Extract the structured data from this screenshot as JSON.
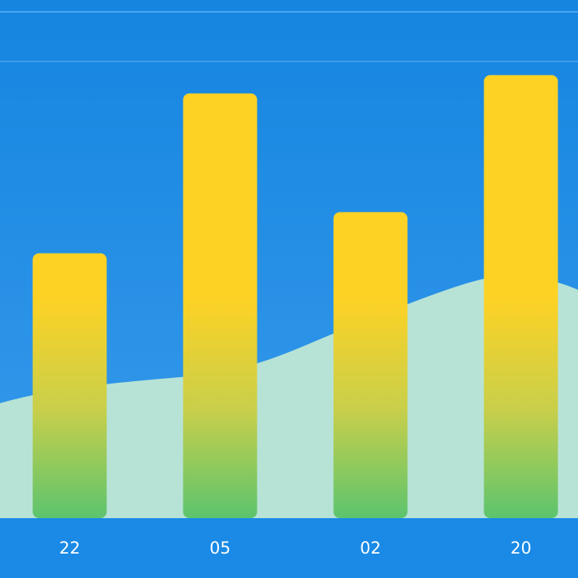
{
  "chart_data": {
    "type": "bar",
    "categories": [
      "22",
      "05",
      "02",
      "20"
    ],
    "values": [
      58,
      93,
      67,
      97
    ],
    "color": "#fdd225",
    "ylim": [
      0,
      100
    ]
  }
}
